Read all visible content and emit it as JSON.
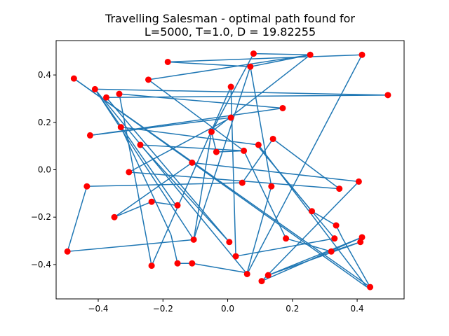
{
  "chart_data": {
    "type": "scatter",
    "title_line1": "Travelling Salesman - optimal path found for",
    "title_line2": "L=5000, T=1.0, D = 19.82255",
    "xlabel": "",
    "ylabel": "",
    "xlim": [
      -0.53,
      0.545
    ],
    "ylim": [
      -0.545,
      0.545
    ],
    "xticks": [
      -0.4,
      -0.2,
      0.0,
      0.2,
      0.4
    ],
    "xtick_labels": [
      "−0.4",
      "−0.2",
      "0.0",
      "0.2",
      "0.4"
    ],
    "yticks": [
      -0.4,
      -0.2,
      0.0,
      0.2,
      0.4
    ],
    "ytick_labels": [
      "−0.4",
      "−0.2",
      "0.0",
      "0.2",
      "0.4"
    ],
    "grid": false,
    "line_color": "#1f77b4",
    "point_color": "#ff0000",
    "path": [
      [
        -0.495,
        -0.345
      ],
      [
        -0.435,
        -0.07
      ],
      [
        0.045,
        -0.055
      ],
      [
        0.14,
        0.13
      ],
      [
        0.345,
        -0.08
      ],
      [
        -0.305,
        -0.01
      ],
      [
        0.01,
        0.22
      ],
      [
        -0.425,
        0.145
      ],
      [
        0.17,
        0.26
      ],
      [
        -0.335,
        0.32
      ],
      [
        -0.235,
        -0.405
      ],
      [
        0.01,
        0.35
      ],
      [
        0.025,
        -0.365
      ],
      [
        0.33,
        -0.29
      ],
      [
        0.09,
        0.105
      ],
      [
        0.26,
        -0.175
      ],
      [
        0.335,
        -0.235
      ],
      [
        0.355,
        -0.29
      ],
      [
        0.44,
        -0.495
      ],
      [
        -0.475,
        0.385
      ],
      [
        0.43,
        -0.495
      ],
      [
        0.095,
        0.105
      ],
      [
        -0.33,
        0.18
      ],
      [
        -0.175,
        -0.275
      ],
      [
        -0.155,
        -0.395
      ],
      [
        -0.11,
        -0.395
      ],
      [
        0.06,
        -0.435
      ],
      [
        0.135,
        -0.07
      ],
      [
        0.07,
        0.435
      ],
      [
        -0.185,
        0.455
      ],
      [
        0.415,
        0.485
      ],
      [
        0.06,
        -0.44
      ],
      [
        -0.41,
        0.34
      ],
      [
        -0.105,
        -0.295
      ],
      [
        -0.05,
        0.16
      ],
      [
        0.255,
        0.485
      ],
      [
        -0.245,
        0.38
      ],
      [
        0.05,
        0.08
      ],
      [
        -0.27,
        0.105
      ],
      [
        0.005,
        -0.305
      ],
      [
        -0.375,
        0.305
      ],
      [
        0.495,
        0.315
      ],
      [
        -0.41,
        0.34
      ],
      [
        -0.16,
        -0.15
      ],
      [
        -0.235,
        -0.135
      ],
      [
        -0.35,
        -0.2
      ],
      [
        -0.11,
        0.03
      ],
      [
        0.405,
        -0.05
      ],
      [
        0.105,
        -0.47
      ],
      [
        0.415,
        -0.285
      ],
      [
        0.125,
        -0.445
      ],
      [
        0.41,
        -0.305
      ],
      [
        0.32,
        -0.345
      ],
      [
        0.18,
        -0.29
      ],
      [
        0.05,
        0.08
      ],
      [
        -0.035,
        0.075
      ],
      [
        -0.05,
        0.16
      ],
      [
        0.08,
        0.49
      ],
      [
        0.255,
        0.485
      ],
      [
        0.07,
        0.435
      ],
      [
        -0.105,
        -0.295
      ],
      [
        -0.495,
        -0.345
      ]
    ],
    "points": [
      [
        -0.495,
        -0.345
      ],
      [
        -0.435,
        -0.07
      ],
      [
        -0.475,
        0.385
      ],
      [
        -0.41,
        0.34
      ],
      [
        -0.425,
        0.145
      ],
      [
        -0.375,
        0.305
      ],
      [
        -0.335,
        0.32
      ],
      [
        -0.33,
        0.18
      ],
      [
        -0.35,
        -0.2
      ],
      [
        -0.305,
        -0.01
      ],
      [
        -0.27,
        0.105
      ],
      [
        -0.245,
        0.38
      ],
      [
        -0.235,
        -0.135
      ],
      [
        -0.235,
        -0.405
      ],
      [
        -0.185,
        0.455
      ],
      [
        -0.155,
        -0.15
      ],
      [
        -0.155,
        -0.395
      ],
      [
        -0.11,
        0.03
      ],
      [
        -0.105,
        -0.295
      ],
      [
        -0.11,
        -0.395
      ],
      [
        -0.05,
        0.16
      ],
      [
        -0.035,
        0.075
      ],
      [
        0.01,
        0.35
      ],
      [
        0.01,
        0.22
      ],
      [
        0.005,
        -0.305
      ],
      [
        0.025,
        -0.365
      ],
      [
        0.045,
        -0.055
      ],
      [
        0.05,
        0.08
      ],
      [
        0.06,
        -0.44
      ],
      [
        0.07,
        0.435
      ],
      [
        0.08,
        0.49
      ],
      [
        0.095,
        0.105
      ],
      [
        0.105,
        -0.47
      ],
      [
        0.125,
        -0.445
      ],
      [
        0.135,
        -0.07
      ],
      [
        0.14,
        0.13
      ],
      [
        0.17,
        0.26
      ],
      [
        0.18,
        -0.29
      ],
      [
        0.255,
        0.485
      ],
      [
        0.26,
        -0.175
      ],
      [
        0.32,
        -0.345
      ],
      [
        0.33,
        -0.29
      ],
      [
        0.335,
        -0.235
      ],
      [
        0.345,
        -0.08
      ],
      [
        0.405,
        -0.05
      ],
      [
        0.41,
        -0.305
      ],
      [
        0.415,
        -0.285
      ],
      [
        0.415,
        0.485
      ],
      [
        0.44,
        -0.495
      ],
      [
        0.495,
        0.315
      ]
    ]
  }
}
